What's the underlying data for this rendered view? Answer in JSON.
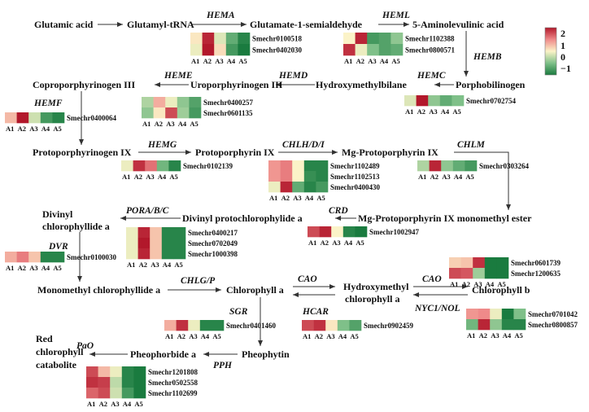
{
  "samples": [
    "A1",
    "A2",
    "A3",
    "A4",
    "A5"
  ],
  "legend": {
    "ticks": [
      "2",
      "1",
      "0",
      "−1"
    ],
    "colors": [
      "#b2182b",
      "#ef8a8a",
      "#fbf3c8",
      "#7fc089",
      "#1a7b3f"
    ]
  },
  "metabolites": {
    "glutamic_acid": "Glutamic acid",
    "glutamyl_trna": "Glutamyl-tRNA",
    "glutamate_semialdehyde": "Glutamate-1-semialdehyde",
    "ala": "5-Aminolevulinic acid",
    "porphobilinogen": "Porphobilinogen",
    "hydroxymethylbilane": "Hydroxymethylbilane",
    "uroporphyrinogen": "Uroporphyrinogen III",
    "coproporphyrinogen": "Coproporphyrinogen III",
    "protoporphyrinogen": "Protoporphyrinogen IX",
    "protoporphyrin": "Protoporphyrin IX",
    "mg_protoporphyrin": "Mg-Protoporphyrin IX",
    "mg_proto_me": "Mg-Protoporphyrin IX monomethyl ester",
    "divinyl_protochlorophyllide": "Divinyl protochlorophylide a",
    "divinyl_chlorophyllide_1": "Divinyl",
    "divinyl_chlorophyllide_2": "chlorophyllide a",
    "monomethyl_chlorophyllide": "Monomethyl chlorophyllide a",
    "chlorophyll_a": "Chlorophyll a",
    "hydroxymethyl_chl_1": "Hydroxymethyl",
    "hydroxymethyl_chl_2": "chlorophyll a",
    "chlorophyll_b": "Chlorophyll b",
    "pheophytin": "Pheophytin",
    "pheophorbide": "Pheophorbide a",
    "rcc_1": "Red",
    "rcc_2": "chlorophyll",
    "rcc_3": "catabolite"
  },
  "enzymes": {
    "hema": "HEMA",
    "heml": "HEML",
    "hemb": "HEMB",
    "hemc": "HEMC",
    "hemd": "HEMD",
    "heme": "HEME",
    "hemf": "HEMF",
    "hemg": "HEMG",
    "chlh": "CHLH/D/I",
    "chlm": "CHLM",
    "crd": "CRD",
    "por": "PORA/B/C",
    "dvr": "DVR",
    "chlg": "CHLG/P",
    "cao_1": "CAO",
    "cao_2": "CAO",
    "sgr": "SGR",
    "hcar": "HCAR",
    "nyc": "NYC1/NOL",
    "pph": "PPH",
    "pao": "PaO"
  },
  "heatmaps": [
    {
      "id": "hema",
      "genes": [
        {
          "name": "Smechr0100518",
          "values": [
            0.3,
            1.9,
            0.0,
            -0.8,
            -1.2
          ]
        },
        {
          "name": "Smechr0402030",
          "values": [
            0.1,
            2.0,
            0.4,
            -1.0,
            -1.3
          ]
        }
      ]
    },
    {
      "id": "heml",
      "genes": [
        {
          "name": "Smechr1102388",
          "values": [
            0.2,
            1.9,
            -1.0,
            -0.9,
            -0.5
          ]
        },
        {
          "name": "Smechr0800571",
          "values": [
            1.8,
            0.1,
            -0.6,
            -0.9,
            -0.8
          ]
        }
      ]
    },
    {
      "id": "hemc",
      "genes": [
        {
          "name": "Smechr0702754",
          "values": [
            0.0,
            2.0,
            -0.5,
            -0.8,
            -0.6
          ]
        }
      ]
    },
    {
      "id": "hemd",
      "genes": [
        {
          "name": "Smechr0400257",
          "values": [
            -0.3,
            0.8,
            0.1,
            -0.5,
            -0.9
          ]
        },
        {
          "name": "Smechr0601135",
          "values": [
            -0.5,
            0.3,
            1.6,
            -0.4,
            -1.0
          ]
        }
      ]
    },
    {
      "id": "hemf",
      "genes": [
        {
          "name": "Smechr0400064",
          "values": [
            0.7,
            2.0,
            -0.1,
            -1.0,
            -1.2
          ]
        }
      ]
    },
    {
      "id": "hemg",
      "genes": [
        {
          "name": "Smechr0102139",
          "values": [
            0.1,
            1.8,
            1.3,
            -0.7,
            -1.2
          ]
        }
      ]
    },
    {
      "id": "chlh",
      "genes": [
        {
          "name": "Smechr1102489",
          "values": [
            1.0,
            1.2,
            0.2,
            -1.2,
            -1.2
          ]
        },
        {
          "name": "Smechr1102513",
          "values": [
            1.0,
            1.2,
            0.2,
            -1.1,
            -1.2
          ]
        },
        {
          "name": "Smechr0400430",
          "values": [
            0.1,
            1.9,
            -0.8,
            -1.2,
            -1.0
          ]
        }
      ]
    },
    {
      "id": "chlm",
      "genes": [
        {
          "name": "Smechr0303264",
          "values": [
            -0.3,
            1.9,
            -0.5,
            -0.8,
            -1.0
          ]
        }
      ]
    },
    {
      "id": "crd",
      "genes": [
        {
          "name": "Smechr1002947",
          "values": [
            1.6,
            1.9,
            0.2,
            -1.2,
            -1.3
          ]
        }
      ]
    },
    {
      "id": "por",
      "genes": [
        {
          "name": "Smechr0400217",
          "values": [
            0.1,
            1.9,
            0.6,
            -1.2,
            -1.2
          ]
        },
        {
          "name": "Smechr0702049",
          "values": [
            0.1,
            2.0,
            0.6,
            -1.2,
            -1.2
          ]
        },
        {
          "name": "Smechr1000398",
          "values": [
            0.1,
            1.9,
            0.6,
            -1.2,
            -1.2
          ]
        }
      ]
    },
    {
      "id": "dvr",
      "genes": [
        {
          "name": "Smechr0100030",
          "values": [
            0.8,
            1.2,
            0.6,
            -1.2,
            -1.2
          ]
        }
      ]
    },
    {
      "id": "cao",
      "genes": [
        {
          "name": "Smechr0601739",
          "values": [
            0.5,
            0.6,
            1.8,
            -1.3,
            -1.3
          ]
        },
        {
          "name": "Smechr1200635",
          "values": [
            1.6,
            1.5,
            -0.4,
            -1.3,
            -1.3
          ]
        }
      ]
    },
    {
      "id": "sgr",
      "genes": [
        {
          "name": "Smechr0401460",
          "values": [
            0.8,
            1.8,
            0.1,
            -1.2,
            -1.2
          ]
        }
      ]
    },
    {
      "id": "hcar",
      "genes": [
        {
          "name": "Smechr0902459",
          "values": [
            1.6,
            1.8,
            0.3,
            -0.6,
            -0.9
          ]
        }
      ]
    },
    {
      "id": "nyc",
      "genes": [
        {
          "name": "Smechr0701042",
          "values": [
            1.0,
            1.1,
            0.1,
            -1.3,
            -0.6
          ]
        },
        {
          "name": "Smechr0800857",
          "values": [
            -0.7,
            1.9,
            -0.5,
            -1.2,
            -1.2
          ]
        }
      ]
    },
    {
      "id": "pao",
      "genes": [
        {
          "name": "Smechr1201808",
          "values": [
            1.6,
            0.7,
            0.1,
            -1.2,
            -1.3
          ]
        },
        {
          "name": "Smechr0502558",
          "values": [
            1.8,
            1.7,
            -0.2,
            -1.2,
            -1.3
          ]
        },
        {
          "name": "Smechr1102699",
          "values": [
            1.4,
            1.6,
            -0.1,
            -1.0,
            -1.3
          ]
        }
      ]
    }
  ]
}
